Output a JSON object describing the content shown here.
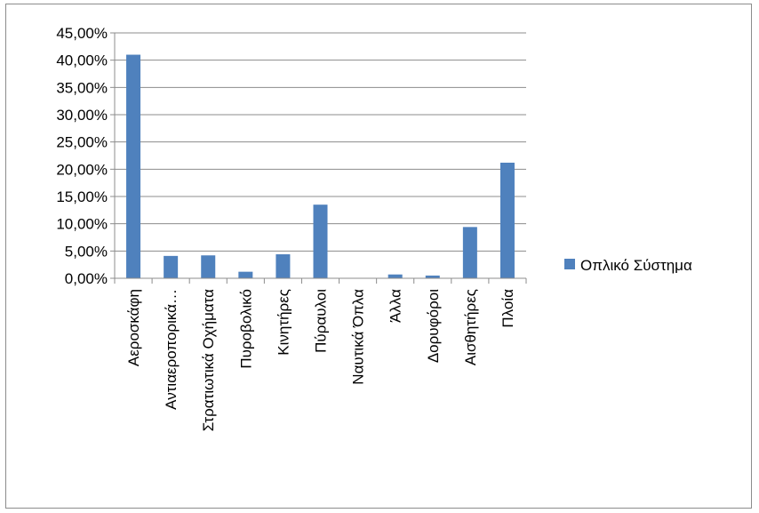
{
  "chart_data": {
    "type": "bar",
    "categories": [
      "Αεροσκάφη",
      "Αντιαεροπορικά…",
      "Στρατιωτικά Οχήματα",
      "Πυροβολικό",
      "Κινητήρες",
      "Πύραυλοι",
      "Ναυτικά Όπλα",
      "Άλλα",
      "Δορυφόροι",
      "Αισθητήρες",
      "Πλοία"
    ],
    "series": [
      {
        "name": "Οπλικό Σύστημα",
        "color": "#4f81bd",
        "values": [
          41.0,
          4.1,
          4.2,
          1.2,
          4.4,
          13.5,
          0.0,
          0.7,
          0.5,
          9.4,
          21.2
        ]
      }
    ],
    "y_ticks": [
      "0,00%",
      "5,00%",
      "10,00%",
      "15,00%",
      "20,00%",
      "25,00%",
      "30,00%",
      "35,00%",
      "40,00%",
      "45,00%"
    ],
    "ylim": [
      0,
      45
    ],
    "y_step": 5,
    "grid": true,
    "legend_position": "right"
  }
}
